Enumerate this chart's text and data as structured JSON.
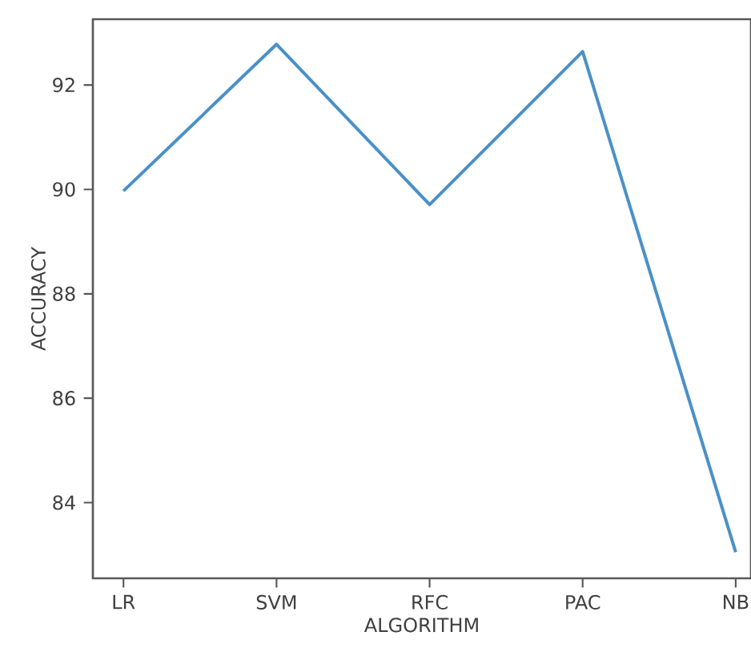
{
  "chart_data": {
    "type": "line",
    "xlabel": "ALGORITHM",
    "ylabel": "ACCURACY",
    "categories": [
      "LR",
      "SVM",
      "RFC",
      "PAC",
      "NB"
    ],
    "series": [
      {
        "color": "#4a90c8",
        "values": [
          89.97,
          92.78,
          89.71,
          92.64,
          83.05
        ]
      }
    ],
    "ylim": [
      82.55,
      93.26
    ],
    "yticks": [
      84,
      86,
      88,
      90,
      92
    ],
    "marker": "none",
    "line_style": "solid"
  }
}
